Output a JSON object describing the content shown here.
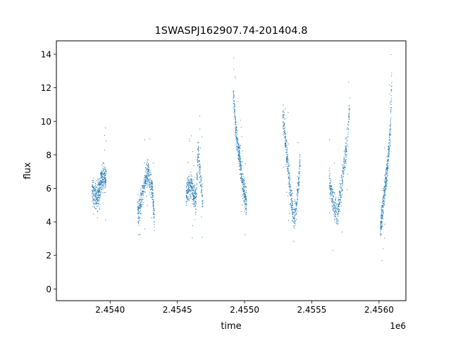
{
  "chart_data": {
    "type": "scatter",
    "title": "1SWASPJ162907.74-201404.8",
    "xlabel": "time",
    "ylabel": "flux",
    "x_offset_label": "1e6",
    "x_unit_scale": 1000000,
    "xlim": [
      2.4536,
      2.4562
    ],
    "ylim": [
      -0.7,
      14.8
    ],
    "x_ticks": [
      2.454,
      2.4545,
      2.455,
      2.4555,
      2.456
    ],
    "x_tick_labels": [
      "2.4540",
      "2.4545",
      "2.4550",
      "2.4555",
      "2.4560"
    ],
    "y_ticks": [
      0,
      2,
      4,
      6,
      8,
      10,
      12,
      14
    ],
    "y_tick_labels": [
      "0",
      "2",
      "4",
      "6",
      "8",
      "10",
      "12",
      "14"
    ],
    "grid": false,
    "legend": "none",
    "colors": {
      "points": "#1f77b4"
    },
    "series": [
      {
        "segments": [
          {
            "t": [
              2453865,
              2453880,
              2453900,
              2453920,
              2453940,
              2453955,
              2453970
            ],
            "flux": [
              5.8,
              5.6,
              5.5,
              5.9,
              6.6,
              6.9,
              6.4
            ]
          },
          {
            "t": [
              2454205,
              2454215,
              2454235,
              2454255,
              2454270,
              2454285,
              2454300,
              2454315,
              2454330
            ],
            "flux": [
              4.5,
              4.6,
              5.5,
              6.2,
              6.8,
              6.9,
              6.4,
              5.9,
              4.1
            ]
          },
          {
            "t": [
              2454565,
              2454580,
              2454600,
              2454620,
              2454640,
              2454655,
              2454665,
              2454680,
              2454690
            ],
            "flux": [
              5.6,
              6.0,
              6.3,
              5.6,
              5.3,
              8.3,
              7.2,
              6.0,
              5.4
            ]
          },
          {
            "t": [
              2454915,
              2454925,
              2454940,
              2454955,
              2454970,
              2454985,
              2455000,
              2455015
            ],
            "flux": [
              11.5,
              10.8,
              9.0,
              8.3,
              7.4,
              6.3,
              5.7,
              5.1
            ]
          },
          {
            "t": [
              2455285,
              2455295,
              2455310,
              2455325,
              2455340,
              2455355,
              2455370,
              2455385,
              2455400,
              2455415
            ],
            "flux": [
              10.5,
              9.6,
              8.3,
              7.2,
              5.9,
              4.8,
              4.1,
              4.9,
              6.1,
              7.8
            ]
          },
          {
            "t": [
              2455630,
              2455645,
              2455660,
              2455675,
              2455690,
              2455705,
              2455720,
              2455735,
              2455750,
              2455765,
              2455780
            ],
            "flux": [
              6.3,
              5.9,
              5.2,
              4.7,
              4.4,
              5.2,
              6.0,
              7.0,
              8.0,
              9.0,
              10.8
            ]
          },
          {
            "t": [
              2456010,
              2456025,
              2456040,
              2456055,
              2456070,
              2456085,
              2456095
            ],
            "flux": [
              3.7,
              4.6,
              5.8,
              6.7,
              7.9,
              9.6,
              12.5
            ]
          }
        ]
      }
    ]
  }
}
